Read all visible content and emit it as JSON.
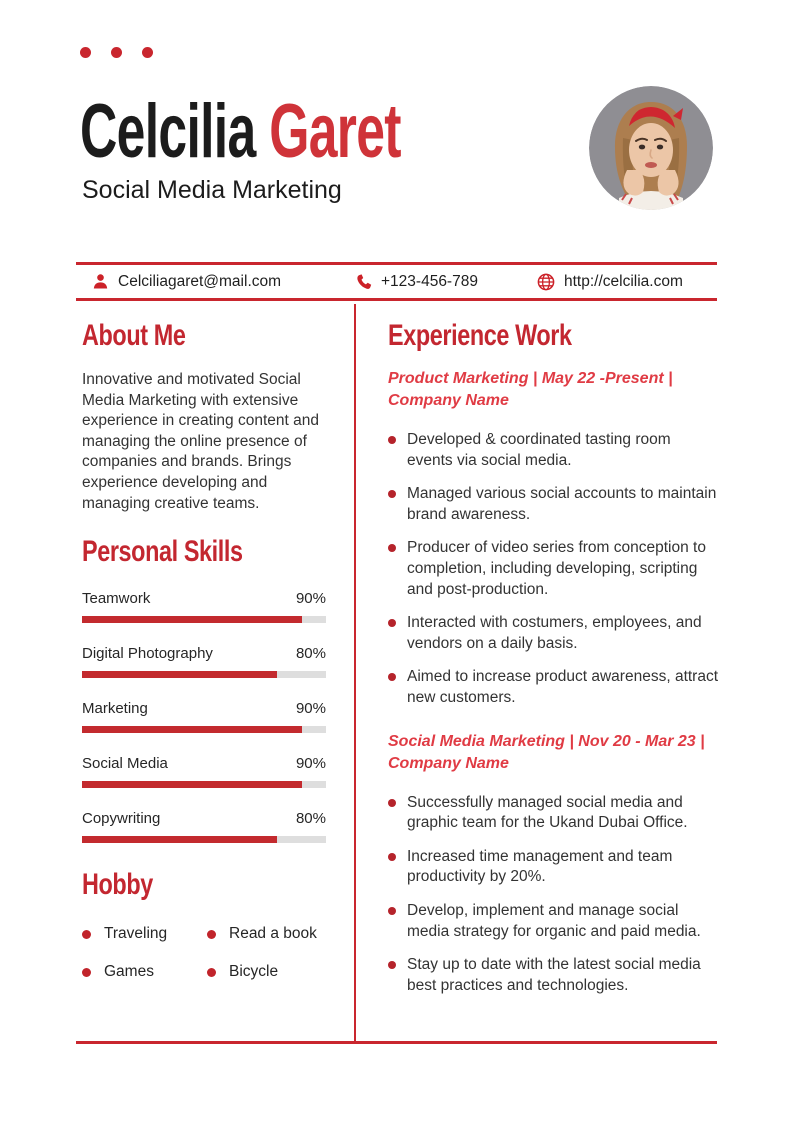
{
  "colors": {
    "accent_red": "#c9262e",
    "heading_red": "#c32730",
    "job_title_red": "#e03b44",
    "name_red": "#cf3339",
    "bullet_red": "#b5232b",
    "body_text": "#333333",
    "bar_track_gray": "#dedede",
    "photo_background_gray": "#8f8e93"
  },
  "header": {
    "first_name": "Celcilia",
    "last_name": "Garet",
    "subtitle": "Social Media Marketing"
  },
  "contact": {
    "email": "Celciliagaret@mail.com",
    "phone": "+123-456-789",
    "website": "http://celcilia.com"
  },
  "about": {
    "title": "About Me",
    "text": "Innovative and motivated Social Media Marketing with extensive experience in creating content and managing the online presence of companies and brands. Brings experience developing and managing creative teams."
  },
  "skills": {
    "title": "Personal Skills",
    "items": [
      {
        "label": "Teamwork",
        "value": 90,
        "display": "90%"
      },
      {
        "label": "Digital Photography",
        "value": 80,
        "display": "80%"
      },
      {
        "label": "Marketing",
        "value": 90,
        "display": "90%"
      },
      {
        "label": "Social Media",
        "value": 90,
        "display": "90%"
      },
      {
        "label": "Copywriting",
        "value": 80,
        "display": "80%"
      }
    ]
  },
  "hobby": {
    "title": "Hobby",
    "items": [
      "Traveling",
      "Read a book",
      "Games",
      "Bicycle"
    ]
  },
  "experience": {
    "title": "Experience Work",
    "jobs": [
      {
        "title": "Product Marketing | May 22 -Present | Company Name",
        "bullets": [
          "Developed & coordinated tasting room events via social media.",
          "Managed various social accounts to maintain brand awareness.",
          "Producer of video series from conception to completion, including developing, scripting and post-production.",
          "Interacted with costumers, employees, and vendors on a daily basis.",
          "Aimed to increase product awareness, attract new customers."
        ]
      },
      {
        "title": "Social Media Marketing | Nov 20 - Mar 23 | Company Name",
        "bullets": [
          "Successfully managed social media and graphic team for the Ukand Dubai Office.",
          "Increased time management and team productivity by 20%.",
          "Develop, implement and manage social media strategy for organic and paid media.",
          "Stay up to date with the latest social media best practices and technologies."
        ]
      }
    ]
  }
}
